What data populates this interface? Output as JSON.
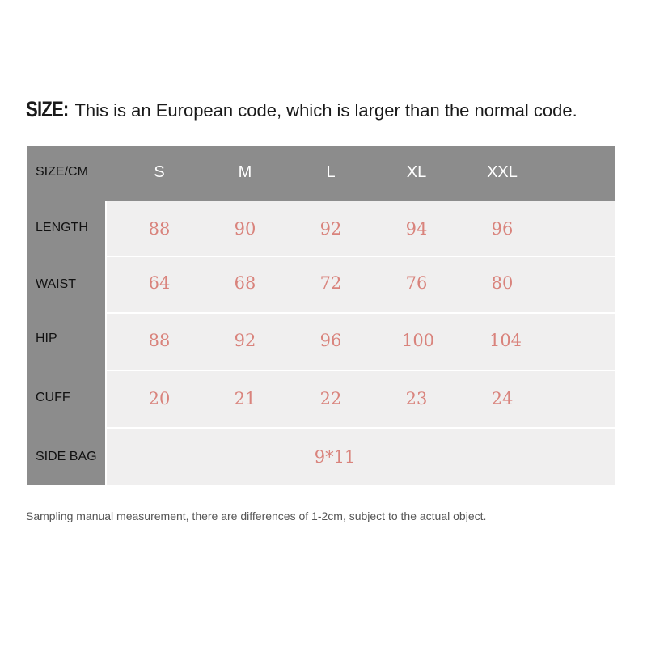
{
  "heading": {
    "lead": "SIZE:",
    "text": "This is an European code, which is larger than the normal code."
  },
  "table": {
    "corner_label": "SIZE/CM",
    "sizes": [
      "S",
      "M",
      "L",
      "XL",
      "XXL"
    ],
    "rows": [
      {
        "label": "LENGTH",
        "values": [
          "88",
          "90",
          "92",
          "94",
          "96"
        ]
      },
      {
        "label": "WAIST",
        "values": [
          "64",
          "68",
          "72",
          "76",
          "80"
        ]
      },
      {
        "label": "HIP",
        "values": [
          "88",
          "92",
          "96",
          "100",
          "104"
        ]
      },
      {
        "label": "CUFF",
        "values": [
          "20",
          "21",
          "22",
          "23",
          "24"
        ]
      }
    ],
    "side_bag": {
      "label": "SIDE BAG",
      "value": "9*11"
    }
  },
  "note": "Sampling manual measurement, there are differences of 1-2cm, subject to the actual object.",
  "colors": {
    "header_bg": "#8c8c8c",
    "cell_bg": "#f0efef",
    "value_text": "#d9837c"
  }
}
